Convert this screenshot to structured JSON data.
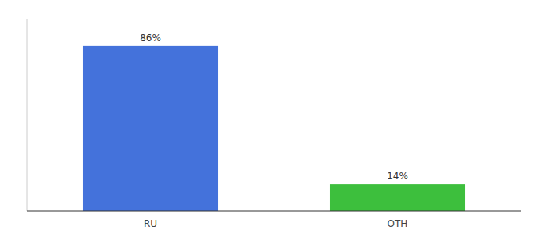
{
  "chart_data": {
    "type": "bar",
    "categories": [
      "RU",
      "OTH"
    ],
    "values": [
      86,
      14
    ],
    "value_labels": [
      "86%",
      "14%"
    ],
    "colors": [
      "#4472db",
      "#3dbf3d"
    ],
    "ylim": [
      0,
      100
    ],
    "data_labels": true,
    "tick_labels": "x"
  }
}
